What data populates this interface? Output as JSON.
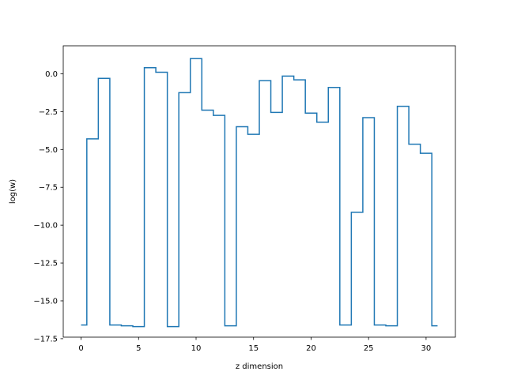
{
  "chart_data": {
    "type": "line",
    "drawstyle": "steps-mid",
    "title": "",
    "xlabel": "z dimension",
    "ylabel": "log(w)",
    "xlim": [
      -1.55,
      32.55
    ],
    "ylim": [
      -17.4,
      1.85
    ],
    "xticks": [
      0,
      5,
      10,
      15,
      20,
      25,
      30
    ],
    "yticks": [
      0.0,
      -2.5,
      -5.0,
      -7.5,
      -10.0,
      -12.5,
      -15.0,
      -17.5
    ],
    "xtick_labels": [
      "0",
      "5",
      "10",
      "15",
      "20",
      "25",
      "30"
    ],
    "ytick_labels": [
      "0.0",
      "−2.5",
      "−5.0",
      "−7.5",
      "−10.0",
      "−12.5",
      "−15.0",
      "−17.5"
    ],
    "grid": false,
    "line_color": "#1f77b4",
    "series": [
      {
        "x": [
          0,
          1,
          2,
          3,
          4,
          5,
          6,
          7,
          8,
          9,
          10,
          11,
          12,
          13,
          14,
          15,
          16,
          17,
          18,
          19,
          20,
          21,
          22,
          23,
          24,
          25,
          26,
          27,
          28,
          29,
          30,
          31
        ],
        "values": [
          -16.6,
          -4.3,
          -0.3,
          -16.6,
          -16.65,
          -16.7,
          0.4,
          0.1,
          -16.7,
          -1.25,
          1.0,
          -2.4,
          -2.75,
          -16.65,
          -3.5,
          -4.0,
          -0.45,
          -2.55,
          -0.15,
          -0.4,
          -2.6,
          -3.2,
          -0.9,
          -16.6,
          -9.15,
          -2.9,
          -16.6,
          -16.65,
          -2.15,
          -4.65,
          -5.25,
          -16.65
        ]
      }
    ]
  }
}
